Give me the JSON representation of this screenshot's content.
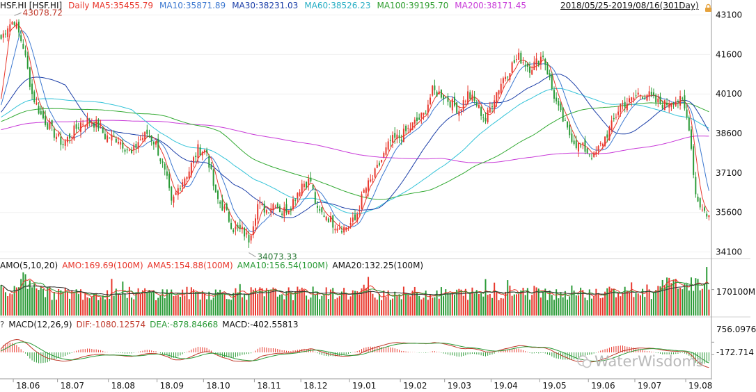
{
  "header": {
    "symbol": "HSF.HI [HSF.HI]",
    "period": "Daily",
    "ma5": "MA5:35455.79",
    "ma10": "MA10:35871.89",
    "ma30": "MA30:38231.03",
    "ma60": "MA60:38526.23",
    "ma100": "MA100:39195.70",
    "ma200": "MA200:38171.45",
    "range": "2018/05/25-2019/08/16(301Day)"
  },
  "volume_panel": {
    "name": "AMO(5,10,20)",
    "amo": "AMO:169.69(100M)",
    "ama5": "AMA5:154.88(100M)",
    "ama10": "AMA10:156.54(100M)",
    "ama20": "AMA20:132.25(100M)",
    "axis_label": "170100M"
  },
  "macd_panel": {
    "question": "?",
    "name": "MACD(12,26,9)",
    "dif": "DIF:-1080.12574",
    "dea": "DEA:-878.84668",
    "macd": "MACD:-402.55813",
    "axis_labels": [
      "756.0976",
      "-172.714"
    ]
  },
  "watermark": "WaterWisdoms",
  "colors": {
    "up": "#e8362b",
    "down": "#2a9a36",
    "ma5": "#e8362b",
    "ma10": "#3c78d0",
    "ma30": "#1c3fa8",
    "ma60": "#33c3d8",
    "ma100": "#33aa33",
    "ma200": "#c83ad8",
    "dif": "#c0392b",
    "dea": "#2a9a36"
  },
  "chart_data": {
    "type": "candlestick",
    "x_axis": {
      "labels": [
        "18.06",
        "18.07",
        "18.08",
        "18.09",
        "18.10",
        "18.11",
        "18.12",
        "19.01",
        "19.02",
        "19.03",
        "19.04",
        "19.05",
        "19.06",
        "19.07",
        "19.08"
      ],
      "range": [
        "2018/05/25",
        "2019/08/16"
      ]
    },
    "price_axis": {
      "ticks": [
        43100,
        41600,
        40100,
        38600,
        37100,
        35600,
        34100
      ],
      "ylim": [
        33850,
        43300
      ]
    },
    "annotations": [
      {
        "label": "43078.72",
        "value": 43078.72,
        "date": "2018/06/04"
      },
      {
        "label": "34073.33",
        "value": 34073.33,
        "date": "2018/10/30"
      }
    ],
    "close_anchors": [
      [
        "2018/05/25",
        42200
      ],
      [
        "2018/05/30",
        42700
      ],
      [
        "2018/06/04",
        42900
      ],
      [
        "2018/06/08",
        41900
      ],
      [
        "2018/06/14",
        40100
      ],
      [
        "2018/06/20",
        39300
      ],
      [
        "2018/06/27",
        38700
      ],
      [
        "2018/07/04",
        38200
      ],
      [
        "2018/07/10",
        38600
      ],
      [
        "2018/07/16",
        39000
      ],
      [
        "2018/07/20",
        39100
      ],
      [
        "2018/07/26",
        38900
      ],
      [
        "2018/07/31",
        38500
      ],
      [
        "2018/08/08",
        38400
      ],
      [
        "2018/08/16",
        37800
      ],
      [
        "2018/08/21",
        38300
      ],
      [
        "2018/08/27",
        38600
      ],
      [
        "2018/08/31",
        38200
      ],
      [
        "2018/09/07",
        36800
      ],
      [
        "2018/09/11",
        35900
      ],
      [
        "2018/09/17",
        36700
      ],
      [
        "2018/09/21",
        37200
      ],
      [
        "2018/09/27",
        38000
      ],
      [
        "2018/10/03",
        37900
      ],
      [
        "2018/10/09",
        36200
      ],
      [
        "2018/10/15",
        35700
      ],
      [
        "2018/10/19",
        35000
      ],
      [
        "2018/10/25",
        34900
      ],
      [
        "2018/10/30",
        34600
      ],
      [
        "2018/11/05",
        35900
      ],
      [
        "2018/11/09",
        35700
      ],
      [
        "2018/11/15",
        36000
      ],
      [
        "2018/11/20",
        35600
      ],
      [
        "2018/11/26",
        35900
      ],
      [
        "2018/12/03",
        36700
      ],
      [
        "2018/12/07",
        36800
      ],
      [
        "2018/12/12",
        35600
      ],
      [
        "2018/12/18",
        35500
      ],
      [
        "2018/12/21",
        35200
      ],
      [
        "2018/12/28",
        35000
      ],
      [
        "2019/01/04",
        35300
      ],
      [
        "2019/01/10",
        36400
      ],
      [
        "2019/01/16",
        36900
      ],
      [
        "2019/01/22",
        37600
      ],
      [
        "2019/01/28",
        38300
      ],
      [
        "2019/02/04",
        38500
      ],
      [
        "2019/02/12",
        39000
      ],
      [
        "2019/02/18",
        39300
      ],
      [
        "2019/02/22",
        40200
      ],
      [
        "2019/02/28",
        40100
      ],
      [
        "2019/03/06",
        39800
      ],
      [
        "2019/03/12",
        39500
      ],
      [
        "2019/03/18",
        40100
      ],
      [
        "2019/03/22",
        39700
      ],
      [
        "2019/03/28",
        39100
      ],
      [
        "2019/04/03",
        40000
      ],
      [
        "2019/04/09",
        40700
      ],
      [
        "2019/04/15",
        41200
      ],
      [
        "2019/04/18",
        41500
      ],
      [
        "2019/04/25",
        41100
      ],
      [
        "2019/04/30",
        41300
      ],
      [
        "2019/05/03",
        41600
      ],
      [
        "2019/05/09",
        40300
      ],
      [
        "2019/05/14",
        39500
      ],
      [
        "2019/05/20",
        38700
      ],
      [
        "2019/05/24",
        38200
      ],
      [
        "2019/05/30",
        38000
      ],
      [
        "2019/06/05",
        37700
      ],
      [
        "2019/06/11",
        38300
      ],
      [
        "2019/06/17",
        38900
      ],
      [
        "2019/06/21",
        39700
      ],
      [
        "2019/06/27",
        39800
      ],
      [
        "2019/07/03",
        40100
      ],
      [
        "2019/07/09",
        40100
      ],
      [
        "2019/07/15",
        39800
      ],
      [
        "2019/07/19",
        39700
      ],
      [
        "2019/07/25",
        39900
      ],
      [
        "2019/07/31",
        39800
      ],
      [
        "2019/08/05",
        38900
      ],
      [
        "2019/08/08",
        36300
      ],
      [
        "2019/08/13",
        35700
      ],
      [
        "2019/08/16",
        35500
      ]
    ],
    "ma_lines": [
      {
        "name": "MA5",
        "last": 35455.79
      },
      {
        "name": "MA10",
        "last": 35871.89
      },
      {
        "name": "MA30",
        "last": 38231.03
      },
      {
        "name": "MA60",
        "last": 38526.23
      },
      {
        "name": "MA100",
        "last": 39195.7
      },
      {
        "name": "MA200",
        "last": 38171.45
      }
    ],
    "volume": {
      "unit": "100M",
      "typical_value": 170,
      "last": 169.69
    },
    "macd": {
      "dif_last": -1080.12574,
      "dea_last": -878.84668,
      "macd_last": -402.55813
    }
  }
}
